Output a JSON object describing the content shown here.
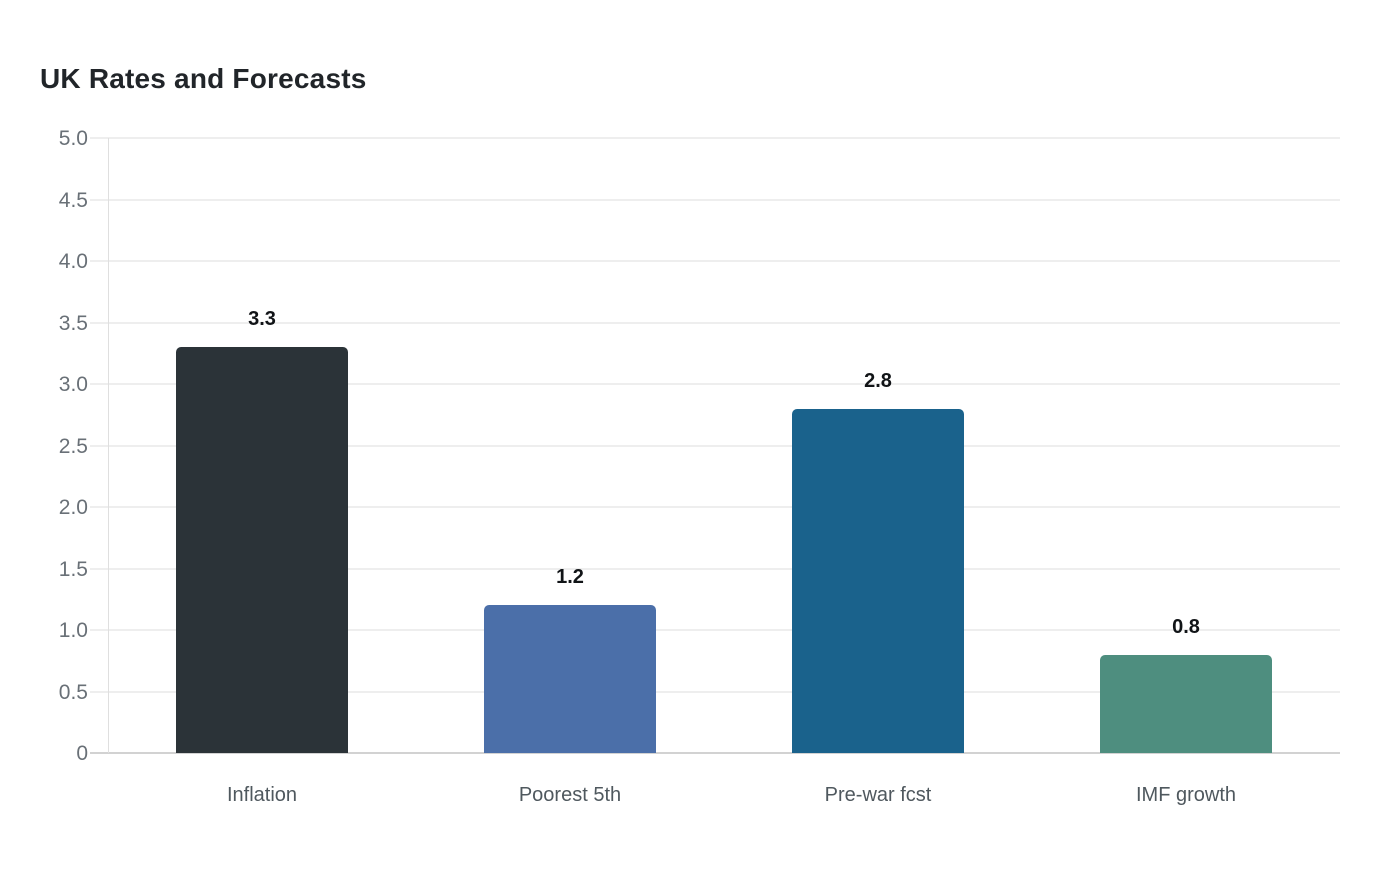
{
  "header": {
    "title": "UK Rates and Forecasts"
  },
  "chart_data": {
    "type": "bar",
    "title": "UK Rates and Forecasts",
    "categories": [
      "Inflation",
      "Poorest 5th",
      "Pre-war fcst",
      "IMF growth"
    ],
    "values": [
      3.3,
      1.2,
      2.8,
      0.8
    ],
    "value_labels": [
      "3.3",
      "1.2",
      "2.8",
      "0.8"
    ],
    "bar_colors": [
      "#2b3338",
      "#4b6fa9",
      "#1a628c",
      "#4e8e7f"
    ],
    "xlabel": "",
    "ylabel": "",
    "ylim": [
      0,
      5
    ],
    "ytick_step": 0.5,
    "ytick_labels": [
      "0",
      "0.5",
      "1.0",
      "1.5",
      "2.0",
      "2.5",
      "3.0",
      "3.5",
      "4.0",
      "4.5",
      "5.0"
    ],
    "grid": true,
    "legend_position": "none",
    "colors": {
      "grid": "#eeeeee",
      "baseline": "#d2d2d2",
      "axis_line": "#dfdfdf",
      "tick_label": "#697077",
      "category_label": "#4f585e",
      "value_label": "#111417",
      "title": "#212529",
      "background": "#ffffff"
    }
  }
}
